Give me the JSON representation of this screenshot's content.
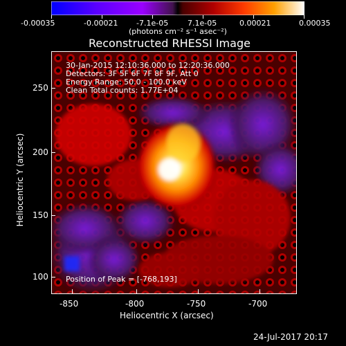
{
  "colorbar": {
    "tick_labels": [
      "-0.00035",
      "-0.00021",
      "-7.1e-05",
      "7.1e-05",
      "0.00021",
      "0.00035"
    ],
    "unit_label": "(photons cm⁻² s⁻¹ asec⁻²)",
    "colors": [
      "#0000ff",
      "#3b00ff",
      "#7800ff",
      "#b000ff",
      "#5a1b6b",
      "#8a0000",
      "#d10000",
      "#ff4a00",
      "#ff8d00",
      "#ffd200",
      "#ffffff"
    ]
  },
  "image": {
    "title": "Reconstructed RHESSI Image",
    "info_lines": [
      "30-Jan-2015 12:10:36.000 to 12:20:36.000",
      "Detectors: 3F 5F 6F 7F 8F 9F, Att 0",
      "Energy Range: 50.0 - 100.0 keV",
      "Clean     Total counts: 1.77E+04"
    ],
    "peak_label": "Position of Peak = [-768,193]"
  },
  "axes": {
    "xlabel": "Heliocentric X (arcsec)",
    "ylabel": "Heliocentric Y (arcsec)",
    "x_ticks": [
      "-850",
      "-800",
      "-750",
      "-700"
    ],
    "y_ticks": [
      "100",
      "150",
      "200",
      "250"
    ]
  },
  "footer": {
    "timestamp": "24-Jul-2017 20:17"
  }
}
